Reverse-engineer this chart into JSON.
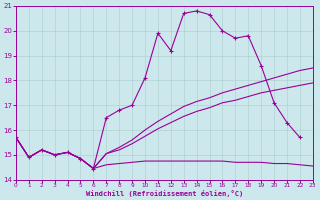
{
  "xlabel": "Windchill (Refroidissement éolien,°C)",
  "background_color": "#cce8ec",
  "line_color": "#990099",
  "xlim": [
    0,
    23
  ],
  "ylim": [
    14,
    21
  ],
  "yticks": [
    14,
    15,
    16,
    17,
    18,
    19,
    20,
    21
  ],
  "xticks": [
    0,
    1,
    2,
    3,
    4,
    5,
    6,
    7,
    8,
    9,
    10,
    11,
    12,
    13,
    14,
    15,
    16,
    17,
    18,
    19,
    20,
    21,
    22,
    23
  ],
  "line1_x": [
    0,
    1,
    2,
    3,
    4,
    5,
    6,
    7,
    8,
    9,
    10,
    11,
    12,
    13,
    14,
    15,
    16,
    17,
    18,
    19,
    20,
    21,
    22
  ],
  "line1_y": [
    15.7,
    14.9,
    15.2,
    15.0,
    15.1,
    14.85,
    14.45,
    16.5,
    16.8,
    17.0,
    18.1,
    19.9,
    19.2,
    20.7,
    20.8,
    20.65,
    20.0,
    19.7,
    19.8,
    18.6,
    17.1,
    16.3,
    15.7
  ],
  "line2_x": [
    0,
    1,
    2,
    3,
    4,
    5,
    6,
    7,
    8,
    9,
    10,
    11,
    12,
    13,
    14,
    15,
    16,
    17,
    18,
    19,
    20,
    21,
    22,
    23
  ],
  "line2_y": [
    15.7,
    14.9,
    15.2,
    15.0,
    15.1,
    14.85,
    14.45,
    15.05,
    15.3,
    15.6,
    16.0,
    16.35,
    16.65,
    16.95,
    17.15,
    17.3,
    17.5,
    17.65,
    17.8,
    17.95,
    18.1,
    18.25,
    18.4,
    18.5
  ],
  "line3_x": [
    0,
    1,
    2,
    3,
    4,
    5,
    6,
    7,
    8,
    9,
    10,
    11,
    12,
    13,
    14,
    15,
    16,
    17,
    18,
    19,
    20,
    21,
    22,
    23
  ],
  "line3_y": [
    15.7,
    14.9,
    15.2,
    15.0,
    15.1,
    14.85,
    14.45,
    15.05,
    15.2,
    15.45,
    15.75,
    16.05,
    16.3,
    16.55,
    16.75,
    16.9,
    17.1,
    17.2,
    17.35,
    17.5,
    17.6,
    17.7,
    17.8,
    17.9
  ],
  "line4_x": [
    0,
    1,
    2,
    3,
    4,
    5,
    6,
    7,
    8,
    9,
    10,
    11,
    12,
    13,
    14,
    15,
    16,
    17,
    18,
    19,
    20,
    21,
    22,
    23
  ],
  "line4_y": [
    15.7,
    14.9,
    15.2,
    15.0,
    15.1,
    14.85,
    14.45,
    14.6,
    14.65,
    14.7,
    14.75,
    14.75,
    14.75,
    14.75,
    14.75,
    14.75,
    14.75,
    14.7,
    14.7,
    14.7,
    14.65,
    14.65,
    14.6,
    14.55
  ]
}
